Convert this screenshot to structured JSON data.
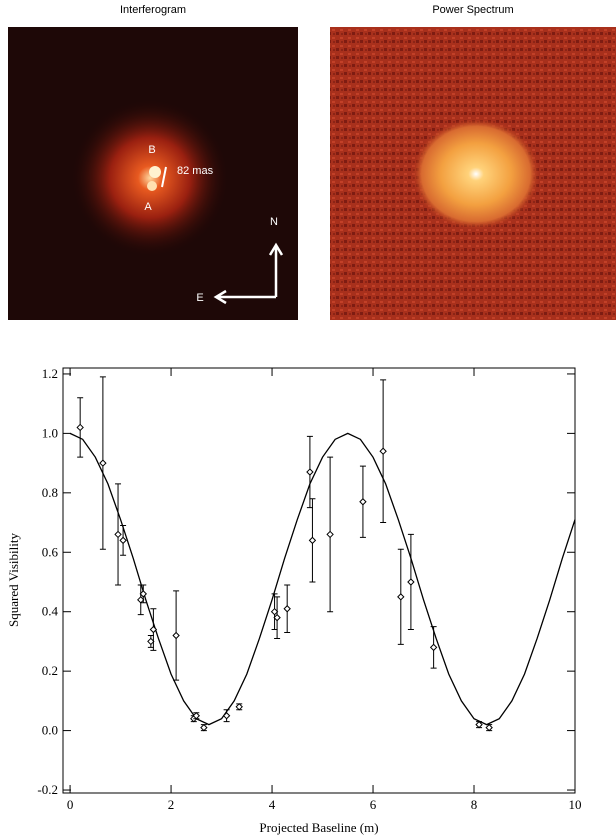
{
  "panels": [
    {
      "title": "Interferogram",
      "labels": [
        "B",
        "A",
        "82 mas",
        "N",
        "E"
      ]
    },
    {
      "title": "Power Spectrum"
    }
  ],
  "chart_data": {
    "type": "scatter",
    "xlabel": "Projected Baseline (m)",
    "ylabel": "Squared Visibility",
    "x": [
      0.2,
      0.65,
      0.95,
      1.05,
      1.4,
      1.45,
      1.6,
      1.65,
      2.1,
      2.45,
      2.5,
      2.65,
      3.1,
      3.35,
      4.05,
      4.1,
      4.3,
      4.75,
      4.8,
      5.15,
      5.8,
      6.2,
      6.55,
      6.75,
      7.2,
      8.1,
      8.3
    ],
    "values": [
      1.02,
      0.9,
      0.66,
      0.64,
      0.44,
      0.46,
      0.3,
      0.34,
      0.32,
      0.04,
      0.05,
      0.01,
      0.05,
      0.08,
      0.4,
      0.38,
      0.41,
      0.87,
      0.64,
      0.66,
      0.77,
      0.94,
      0.45,
      0.5,
      0.28,
      0.02,
      0.01
    ],
    "errors": [
      0.1,
      0.29,
      0.17,
      0.05,
      0.05,
      0.03,
      0.02,
      0.07,
      0.15,
      0.01,
      0.01,
      0.01,
      0.02,
      0.01,
      0.06,
      0.07,
      0.08,
      0.12,
      0.14,
      0.26,
      0.12,
      0.24,
      0.16,
      0.16,
      0.07,
      0.01,
      0.01
    ],
    "color": "#000000",
    "curve": {
      "type": "line",
      "x": [
        0,
        0.25,
        0.5,
        0.75,
        1,
        1.25,
        1.5,
        1.75,
        2,
        2.25,
        2.5,
        2.75,
        3,
        3.25,
        3.5,
        3.75,
        4,
        4.25,
        4.5,
        4.75,
        5,
        5.25,
        5.5,
        5.75,
        6,
        6.25,
        6.5,
        6.75,
        7,
        7.25,
        7.5,
        7.75,
        8,
        8.25,
        8.5,
        8.75,
        9,
        9.25,
        9.5,
        9.75,
        10
      ],
      "values": [
        1.0,
        0.98,
        0.92,
        0.83,
        0.71,
        0.58,
        0.44,
        0.31,
        0.19,
        0.1,
        0.04,
        0.02,
        0.04,
        0.1,
        0.19,
        0.31,
        0.44,
        0.58,
        0.71,
        0.83,
        0.92,
        0.98,
        1.0,
        0.98,
        0.92,
        0.83,
        0.71,
        0.58,
        0.44,
        0.31,
        0.19,
        0.1,
        0.04,
        0.02,
        0.04,
        0.1,
        0.19,
        0.31,
        0.44,
        0.58,
        0.71
      ]
    },
    "xlim": [
      -0.14,
      10
    ],
    "ylim": [
      -0.21,
      1.22
    ],
    "xticks": [
      0,
      2,
      4,
      6,
      8,
      10
    ],
    "yticks": [
      -0.2,
      {
        "value": 0,
        "label": "0.0"
      },
      0.2,
      0.4,
      0.6,
      0.8,
      {
        "value": 1,
        "label": "1.0"
      },
      1.2
    ]
  }
}
